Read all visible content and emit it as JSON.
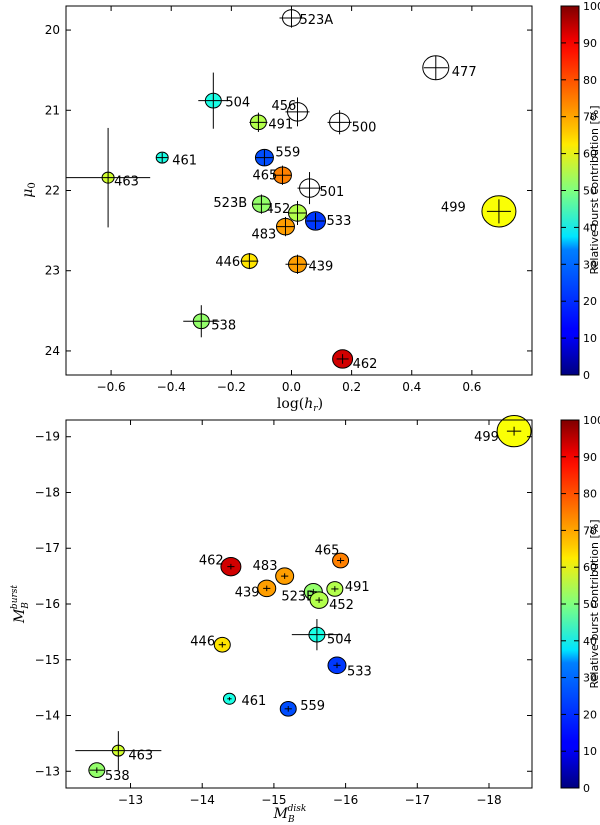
{
  "chart_data": [
    {
      "type": "scatter",
      "title": "",
      "xlabel": "log(h_r)",
      "ylabel": "μ0",
      "xlim": [
        -0.75,
        0.8
      ],
      "ylim": [
        24.3,
        19.7
      ],
      "x_ticks": [
        -0.6,
        -0.4,
        -0.2,
        0.0,
        0.2,
        0.4,
        0.6
      ],
      "x_tick_labels": [
        "−0.6",
        "−0.4",
        "−0.2",
        "0.0",
        "0.2",
        "0.4",
        "0.6"
      ],
      "y_ticks": [
        20,
        21,
        22,
        23,
        24
      ],
      "y_tick_labels": [
        "20",
        "21",
        "22",
        "23",
        "24"
      ],
      "colorbar": {
        "label": "Relative burst contribution [%]",
        "range": [
          0,
          100
        ],
        "ticks": [
          0,
          10,
          20,
          30,
          40,
          50,
          60,
          70,
          80,
          90,
          100
        ]
      },
      "points": [
        {
          "label": "523A",
          "x": 0.0,
          "y": 19.85,
          "burst": null,
          "size": 9,
          "xerr": 0.04,
          "yerr": 0.12
        },
        {
          "label": "477",
          "x": 0.48,
          "y": 20.47,
          "burst": null,
          "size": 13,
          "xerr": 0.04,
          "yerr": 0.15
        },
        {
          "label": "504",
          "x": -0.26,
          "y": 20.88,
          "burst": 40,
          "size": 8,
          "xerr": 0.05,
          "yerr": 0.35
        },
        {
          "label": "456",
          "x": 0.02,
          "y": 21.02,
          "burst": null,
          "size": 10,
          "xerr": 0.04,
          "yerr": 0.18
        },
        {
          "label": "500",
          "x": 0.16,
          "y": 21.15,
          "burst": null,
          "size": 10,
          "xerr": 0.04,
          "yerr": 0.15
        },
        {
          "label": "491",
          "x": -0.11,
          "y": 21.15,
          "burst": 55,
          "size": 8,
          "xerr": 0.03,
          "yerr": 0.12
        },
        {
          "label": "461",
          "x": -0.43,
          "y": 21.59,
          "burst": 40,
          "size": 6,
          "xerr": 0.02,
          "yerr": 0.06
        },
        {
          "label": "559",
          "x": -0.09,
          "y": 21.59,
          "burst": 20,
          "size": 9,
          "xerr": 0.03,
          "yerr": 0.1
        },
        {
          "label": "465",
          "x": -0.03,
          "y": 21.81,
          "burst": 75,
          "size": 9,
          "xerr": 0.03,
          "yerr": 0.12
        },
        {
          "label": "463",
          "x": -0.61,
          "y": 21.84,
          "burst": 58,
          "size": 6,
          "xerr": 0.14,
          "yerr": 0.62
        },
        {
          "label": "501",
          "x": 0.06,
          "y": 21.97,
          "burst": null,
          "size": 10,
          "xerr": 0.04,
          "yerr": 0.2
        },
        {
          "label": "452",
          "x": 0.02,
          "y": 22.28,
          "burst": 55,
          "size": 9,
          "xerr": 0.03,
          "yerr": 0.15
        },
        {
          "label": "523B",
          "x": -0.1,
          "y": 22.17,
          "burst": 52,
          "size": 9,
          "xerr": 0.03,
          "yerr": 0.12
        },
        {
          "label": "533",
          "x": 0.08,
          "y": 22.38,
          "burst": 18,
          "size": 10,
          "xerr": 0.03,
          "yerr": 0.1
        },
        {
          "label": "483",
          "x": -0.02,
          "y": 22.45,
          "burst": 72,
          "size": 9,
          "xerr": 0.03,
          "yerr": 0.12
        },
        {
          "label": "499",
          "x": 0.69,
          "y": 22.26,
          "burst": 62,
          "size": 17,
          "xerr": 0.04,
          "yerr": 0.15
        },
        {
          "label": "446",
          "x": -0.14,
          "y": 22.88,
          "burst": 65,
          "size": 8,
          "xerr": 0.03,
          "yerr": 0.1
        },
        {
          "label": "439",
          "x": 0.02,
          "y": 22.92,
          "burst": 72,
          "size": 9,
          "xerr": 0.04,
          "yerr": 0.12
        },
        {
          "label": "538",
          "x": -0.3,
          "y": 23.63,
          "burst": 52,
          "size": 8,
          "xerr": 0.06,
          "yerr": 0.2
        },
        {
          "label": "462",
          "x": 0.17,
          "y": 24.1,
          "burst": 92,
          "size": 10,
          "xerr": 0.02,
          "yerr": 0.06
        }
      ]
    },
    {
      "type": "scatter",
      "title": "",
      "xlabel": "M_B^disk",
      "ylabel": "M_B^burst",
      "xlim": [
        -12.1,
        -18.6
      ],
      "ylim": [
        -12.7,
        -19.3
      ],
      "x_ticks": [
        -13,
        -14,
        -15,
        -16,
        -17,
        -18
      ],
      "x_tick_labels": [
        "−13",
        "−14",
        "−15",
        "−16",
        "−17",
        "−18"
      ],
      "y_ticks": [
        -13,
        -14,
        -15,
        -16,
        -17,
        -18,
        -19
      ],
      "y_tick_labels": [
        "−13",
        "−14",
        "−15",
        "−16",
        "−17",
        "−18",
        "−19"
      ],
      "colorbar": {
        "label": "Relative burst contribution [%]",
        "range": [
          0,
          100
        ],
        "ticks": [
          0,
          10,
          20,
          30,
          40,
          50,
          60,
          70,
          80,
          90,
          100
        ]
      },
      "points": [
        {
          "label": "499",
          "x": -18.35,
          "y": -19.1,
          "burst": 62,
          "size": 17,
          "xerr": 0.1,
          "yerr": 0.08
        },
        {
          "label": "465",
          "x": -15.93,
          "y": -16.78,
          "burst": 75,
          "size": 8,
          "xerr": 0.05,
          "yerr": 0.05
        },
        {
          "label": "462",
          "x": -14.4,
          "y": -16.67,
          "burst": 92,
          "size": 10,
          "xerr": 0.05,
          "yerr": 0.05
        },
        {
          "label": "483",
          "x": -15.15,
          "y": -16.5,
          "burst": 72,
          "size": 9,
          "xerr": 0.05,
          "yerr": 0.05
        },
        {
          "label": "491",
          "x": -15.85,
          "y": -16.27,
          "burst": 55,
          "size": 8,
          "xerr": 0.05,
          "yerr": 0.05
        },
        {
          "label": "439",
          "x": -14.9,
          "y": -16.28,
          "burst": 72,
          "size": 9,
          "xerr": 0.05,
          "yerr": 0.05
        },
        {
          "label": "523B",
          "x": -15.55,
          "y": -16.22,
          "burst": 52,
          "size": 9,
          "xerr": 0.05,
          "yerr": 0.05
        },
        {
          "label": "452",
          "x": -15.63,
          "y": -16.07,
          "burst": 55,
          "size": 9,
          "xerr": 0.05,
          "yerr": 0.05
        },
        {
          "label": "504",
          "x": -15.6,
          "y": -15.45,
          "burst": 40,
          "size": 8,
          "xerr": 0.35,
          "yerr": 0.28
        },
        {
          "label": "446",
          "x": -14.28,
          "y": -15.27,
          "burst": 65,
          "size": 8,
          "xerr": 0.05,
          "yerr": 0.05
        },
        {
          "label": "533",
          "x": -15.88,
          "y": -14.9,
          "burst": 18,
          "size": 9,
          "xerr": 0.05,
          "yerr": 0.05
        },
        {
          "label": "461",
          "x": -14.38,
          "y": -14.3,
          "burst": 40,
          "size": 6,
          "xerr": 0.03,
          "yerr": 0.03
        },
        {
          "label": "559",
          "x": -15.2,
          "y": -14.12,
          "burst": 20,
          "size": 8,
          "xerr": 0.05,
          "yerr": 0.05
        },
        {
          "label": "463",
          "x": -12.83,
          "y": -13.37,
          "burst": 58,
          "size": 6,
          "xerr": 0.6,
          "yerr": 0.35
        },
        {
          "label": "538",
          "x": -12.53,
          "y": -13.02,
          "burst": 52,
          "size": 8,
          "xerr": 0.1,
          "yerr": 0.05
        }
      ]
    }
  ]
}
